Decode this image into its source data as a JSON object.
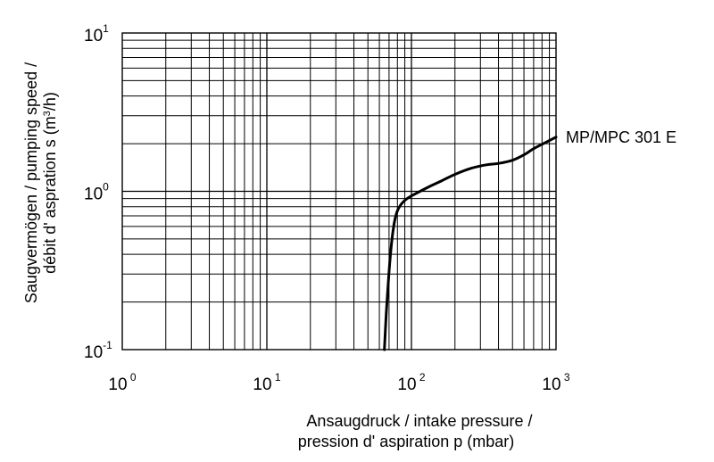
{
  "chart_data": {
    "type": "line",
    "xscale": "log",
    "yscale": "log",
    "xlim": [
      1,
      1000
    ],
    "ylim": [
      0.1,
      10
    ],
    "grid": true,
    "x_ticks": [
      {
        "base": "10",
        "exp": "0"
      },
      {
        "base": "10",
        "exp": "1"
      },
      {
        "base": "10",
        "exp": "2"
      },
      {
        "base": "10",
        "exp": "3"
      }
    ],
    "y_ticks": [
      {
        "base": "10",
        "exp": "-1"
      },
      {
        "base": "10",
        "exp": "0"
      },
      {
        "base": "10",
        "exp": "1"
      }
    ],
    "xlabel": [
      "Ansaugdruck / intake pressure /",
      "pression d' aspiration p (mbar)"
    ],
    "ylabel": {
      "line1": "Saugvermögen / pumping speed /",
      "line2_pre": "débit d' aspration s (m",
      "line2_sup": "3",
      "line2_post": "/h)"
    },
    "series": [
      {
        "name": "MP/MPC 301 E",
        "x": [
          65,
          67,
          70,
          73,
          76,
          79,
          82,
          87,
          95,
          110,
          130,
          160,
          200,
          260,
          330,
          400,
          500,
          600,
          700,
          800,
          1000
        ],
        "y": [
          0.1,
          0.17,
          0.31,
          0.48,
          0.63,
          0.73,
          0.79,
          0.85,
          0.91,
          0.98,
          1.06,
          1.16,
          1.28,
          1.4,
          1.47,
          1.5,
          1.57,
          1.7,
          1.86,
          1.98,
          2.2
        ]
      }
    ]
  }
}
